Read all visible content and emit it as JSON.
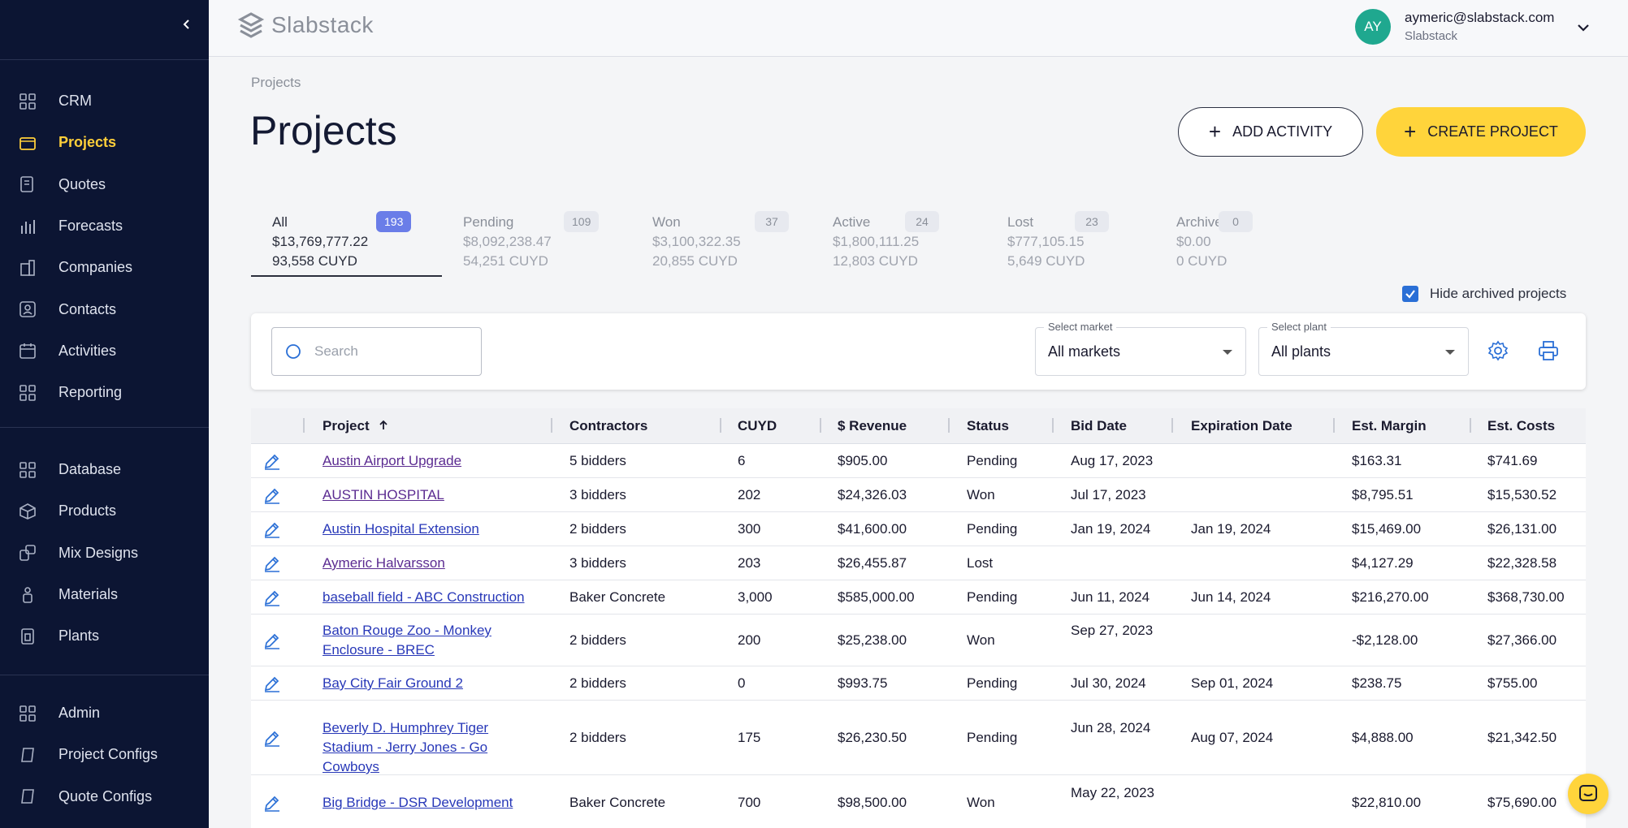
{
  "app": {
    "logo_text": "Slabstack"
  },
  "user": {
    "initials": "AY",
    "email": "aymeric@slabstack.com",
    "org": "Slabstack"
  },
  "sidebar": {
    "primary": [
      {
        "label": "CRM",
        "icon": "grid-icon",
        "active": false
      },
      {
        "label": "Projects",
        "icon": "folder-icon",
        "active": true
      },
      {
        "label": "Quotes",
        "icon": "quote-icon",
        "active": false
      },
      {
        "label": "Forecasts",
        "icon": "bar-chart-icon",
        "active": false
      },
      {
        "label": "Companies",
        "icon": "building-icon",
        "active": false
      },
      {
        "label": "Contacts",
        "icon": "contact-icon",
        "active": false
      },
      {
        "label": "Activities",
        "icon": "calendar-icon",
        "active": false
      },
      {
        "label": "Reporting",
        "icon": "grid-icon",
        "active": false
      }
    ],
    "secondary": [
      {
        "label": "Database",
        "icon": "grid-icon"
      },
      {
        "label": "Products",
        "icon": "box-icon"
      },
      {
        "label": "Mix Designs",
        "icon": "mix-icon"
      },
      {
        "label": "Materials",
        "icon": "materials-icon"
      },
      {
        "label": "Plants",
        "icon": "plant-icon"
      }
    ],
    "tertiary": [
      {
        "label": "Admin",
        "icon": "grid-icon"
      },
      {
        "label": "Project Configs",
        "icon": "config-icon"
      },
      {
        "label": "Quote Configs",
        "icon": "config-icon"
      }
    ]
  },
  "page": {
    "breadcrumb": "Projects",
    "title": "Projects",
    "add_activity_label": "ADD ACTIVITY",
    "create_project_label": "CREATE PROJECT"
  },
  "tabs": [
    {
      "name": "All",
      "count": "193",
      "amount": "$13,769,777.22",
      "cuyd": "93,558 CUYD",
      "active": true
    },
    {
      "name": "Pending",
      "count": "109",
      "amount": "$8,092,238.47",
      "cuyd": "54,251 CUYD",
      "active": false
    },
    {
      "name": "Won",
      "count": "37",
      "amount": "$3,100,322.35",
      "cuyd": "20,855 CUYD",
      "active": false
    },
    {
      "name": "Active",
      "count": "24",
      "amount": "$1,800,111.25",
      "cuyd": "12,803 CUYD",
      "active": false
    },
    {
      "name": "Lost",
      "count": "23",
      "amount": "$777,105.15",
      "cuyd": "5,649 CUYD",
      "active": false
    },
    {
      "name": "Archive",
      "count": "0",
      "amount": "$0.00",
      "cuyd": "0 CUYD",
      "active": false
    }
  ],
  "filters": {
    "hide_archived_label": "Hide archived projects",
    "hide_archived_checked": true,
    "search_placeholder": "Search",
    "market_label": "Select market",
    "market_value": "All markets",
    "plant_label": "Select plant",
    "plant_value": "All plants"
  },
  "table": {
    "columns": [
      "Project",
      "Contractors",
      "CUYD",
      "$ Revenue",
      "Status",
      "Bid Date",
      "Expiration Date",
      "Est. Margin",
      "Est. Costs"
    ],
    "rows": [
      {
        "project": "Austin Airport Upgrade",
        "contractors": "5 bidders",
        "cuyd": "6",
        "revenue": "$905.00",
        "status": "Pending",
        "bid_date": "Aug 17, 2023",
        "exp_date": "",
        "margin": "$163.31",
        "costs": "$741.69"
      },
      {
        "project": "AUSTIN HOSPITAL",
        "contractors": "3 bidders",
        "cuyd": "202",
        "revenue": "$24,326.03",
        "status": "Won",
        "bid_date": "Jul 17, 2023",
        "exp_date": "",
        "margin": "$8,795.51",
        "costs": "$15,530.52"
      },
      {
        "project": "Austin Hospital Extension",
        "contractors": "2 bidders",
        "cuyd": "300",
        "revenue": "$41,600.00",
        "status": "Pending",
        "bid_date": "Jan 19, 2024",
        "exp_date": "Jan 19, 2024",
        "margin": "$15,469.00",
        "costs": "$26,131.00"
      },
      {
        "project": "Aymeric Halvarsson",
        "contractors": "3 bidders",
        "cuyd": "203",
        "revenue": "$26,455.87",
        "status": "Lost",
        "bid_date": "",
        "exp_date": "",
        "margin": "$4,127.29",
        "costs": "$22,328.58"
      },
      {
        "project": "baseball field - ABC Construction",
        "contractors": "Baker Concrete",
        "cuyd": "3,000",
        "revenue": "$585,000.00",
        "status": "Pending",
        "bid_date": "Jun 11, 2024",
        "exp_date": "Jun 14, 2024",
        "margin": "$216,270.00",
        "costs": "$368,730.00"
      },
      {
        "project": "Baton Rouge Zoo - Monkey Enclosure - BREC",
        "contractors": "2 bidders",
        "cuyd": "200",
        "revenue": "$25,238.00",
        "status": "Won",
        "bid_date": "Sep 27, 2023",
        "exp_date": "",
        "margin": "-$2,128.00",
        "costs": "$27,366.00"
      },
      {
        "project": "Bay City Fair Ground 2",
        "contractors": "2 bidders",
        "cuyd": "0",
        "revenue": "$993.75",
        "status": "Pending",
        "bid_date": "Jul 30, 2024",
        "exp_date": "Sep 01, 2024",
        "margin": "$238.75",
        "costs": "$755.00"
      },
      {
        "project": "Beverly D. Humphrey Tiger Stadium - Jerry Jones - Go Cowboys",
        "contractors": "2 bidders",
        "cuyd": "175",
        "revenue": "$26,230.50",
        "status": "Pending",
        "bid_date": "Jun 28, 2024",
        "exp_date": "Aug 07, 2024",
        "margin": "$4,888.00",
        "costs": "$21,342.50"
      },
      {
        "project": "Big Bridge - DSR Development",
        "contractors": "Baker Concrete",
        "cuyd": "700",
        "revenue": "$98,500.00",
        "status": "Won",
        "bid_date": "May 22, 2023",
        "exp_date": "",
        "margin": "$22,810.00",
        "costs": "$75,690.00"
      }
    ]
  },
  "colors": {
    "sidebar_bg": "#0c1533",
    "accent_yellow": "#ffd43b",
    "active_nav": "#ffcf3a",
    "link": "#2838b8",
    "visited_link": "#5b2b91",
    "badge_active": "#6a7de8",
    "avatar": "#1fa88f"
  }
}
